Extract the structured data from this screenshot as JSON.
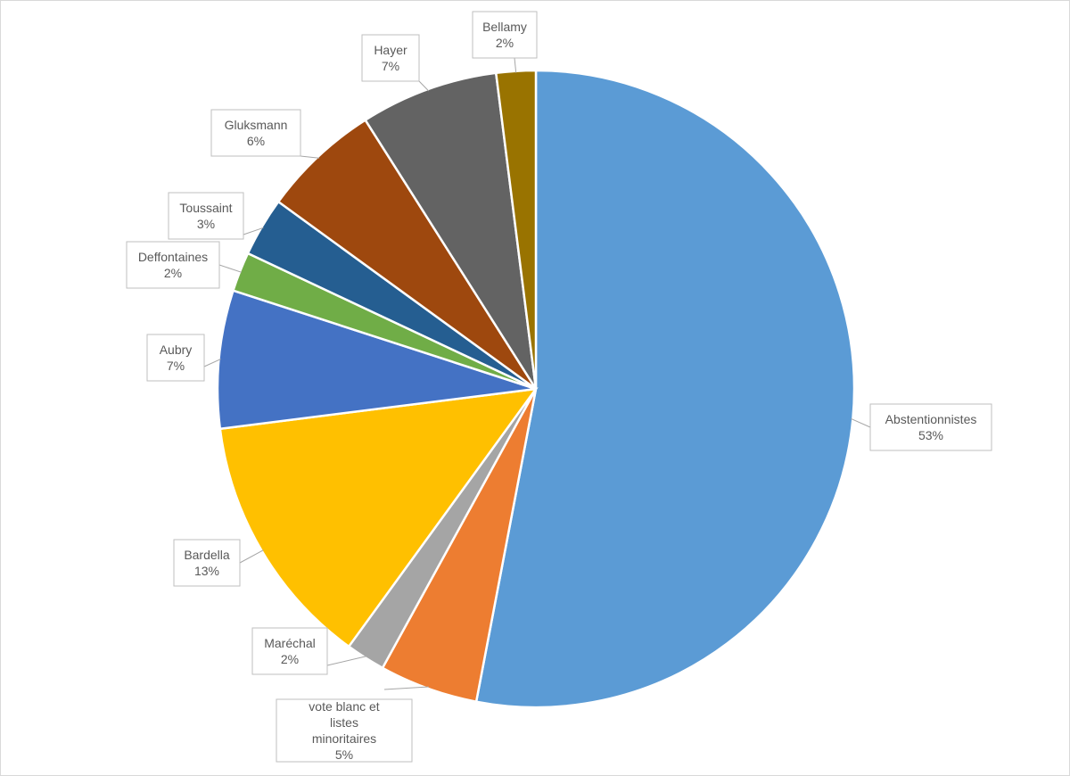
{
  "chart_data": {
    "type": "pie",
    "title": "",
    "start_angle_deg": 0,
    "direction": "clockwise",
    "legend": "none",
    "data_labels": "category and percent, in callout boxes",
    "slices": [
      {
        "name": "Abstentionnistes",
        "value": 53,
        "label": "53%",
        "color": "#5b9bd5"
      },
      {
        "name": "vote blanc et listes minoritaires",
        "value": 5,
        "label": "5%",
        "color": "#ed7d31"
      },
      {
        "name": "Maréchal",
        "value": 2,
        "label": "2%",
        "color": "#a5a5a5"
      },
      {
        "name": "Bardella",
        "value": 13,
        "label": "13%",
        "color": "#ffc000"
      },
      {
        "name": "Aubry",
        "value": 7,
        "label": "7%",
        "color": "#4472c4"
      },
      {
        "name": "Deffontaines",
        "value": 2,
        "label": "2%",
        "color": "#70ad47"
      },
      {
        "name": "Toussaint",
        "value": 3,
        "label": "3%",
        "color": "#255e91"
      },
      {
        "name": "Gluksmann",
        "value": 6,
        "label": "6%",
        "color": "#9e480e"
      },
      {
        "name": "Hayer",
        "value": 7,
        "label": "7%",
        "color": "#636363"
      },
      {
        "name": "Bellamy",
        "value": 2,
        "label": "2%",
        "color": "#997300"
      }
    ]
  }
}
